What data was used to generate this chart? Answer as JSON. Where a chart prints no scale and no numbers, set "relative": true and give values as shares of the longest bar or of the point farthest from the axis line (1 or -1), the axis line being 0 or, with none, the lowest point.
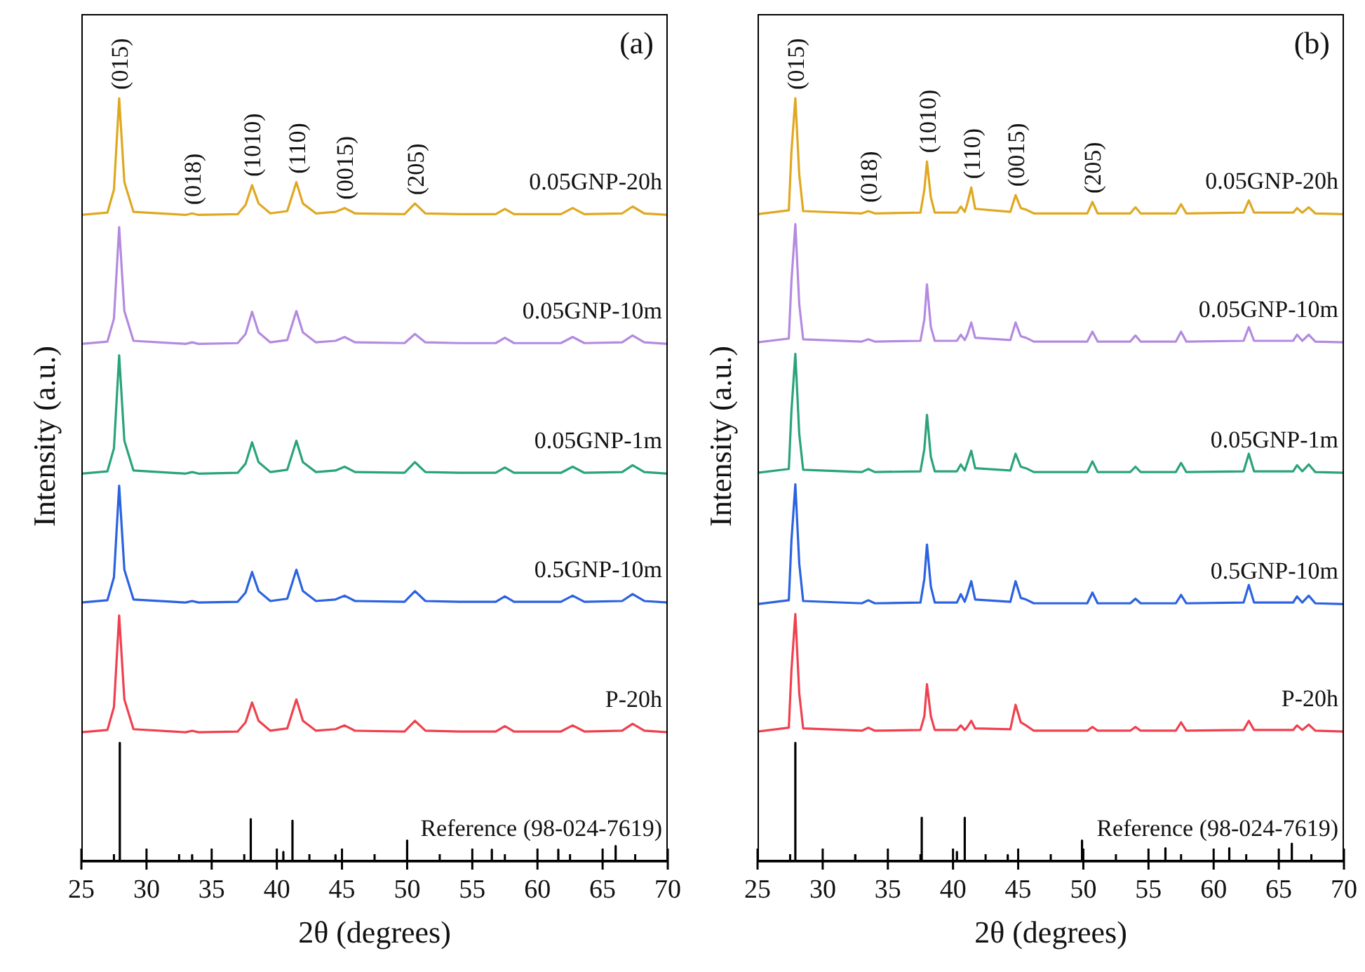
{
  "chart_data": [
    {
      "type": "line",
      "relative": true,
      "xlabel": "2θ (degrees)",
      "ylabel": "Intensity (a.u.)",
      "tick_labels": "x",
      "xlim": [
        25,
        70
      ],
      "xticks": [
        25,
        {
          "value": 27.5,
          "label": null
        },
        30,
        {
          "value": 32.5,
          "label": null
        },
        35,
        {
          "value": 37.5,
          "label": null
        },
        40,
        {
          "value": 42.5,
          "label": null
        },
        45,
        {
          "value": 47.5,
          "label": null
        },
        50,
        {
          "value": 52.5,
          "label": null
        },
        55,
        {
          "value": 57.5,
          "label": null
        },
        60,
        {
          "value": 62.5,
          "label": null
        },
        65,
        {
          "value": 67.5,
          "label": null
        },
        70
      ],
      "x": [
        25,
        27,
        27.5,
        27.9,
        28.3,
        29,
        33,
        33.5,
        34,
        37,
        37.6,
        38.1,
        38.6,
        39.5,
        40.8,
        41.5,
        42,
        43,
        44.5,
        45.2,
        46,
        49.8,
        50.6,
        51.4,
        54,
        56.8,
        57.5,
        58.2,
        61.8,
        62.7,
        63.6,
        66.5,
        67.3,
        68.2,
        70
      ],
      "series": [
        {
          "name": "0.05GNP-20h",
          "color": "#e0a820",
          "values": [
            0.847,
            0.85,
            0.88,
            1.0,
            0.89,
            0.851,
            0.847,
            0.849,
            0.847,
            0.848,
            0.86,
            0.886,
            0.862,
            0.849,
            0.852,
            0.89,
            0.862,
            0.849,
            0.851,
            0.856,
            0.849,
            0.848,
            0.862,
            0.849,
            0.848,
            0.848,
            0.855,
            0.848,
            0.848,
            0.856,
            0.848,
            0.849,
            0.858,
            0.849,
            0.847
          ]
        },
        {
          "name": "0.05GNP-10m",
          "color": "#b48ae0",
          "values": [
            0.678,
            0.681,
            0.711,
            0.831,
            0.721,
            0.682,
            0.678,
            0.68,
            0.678,
            0.679,
            0.691,
            0.72,
            0.693,
            0.68,
            0.683,
            0.721,
            0.693,
            0.68,
            0.682,
            0.687,
            0.68,
            0.679,
            0.691,
            0.68,
            0.679,
            0.679,
            0.686,
            0.679,
            0.679,
            0.687,
            0.679,
            0.68,
            0.689,
            0.68,
            0.678
          ]
        },
        {
          "name": "0.05GNP-1m",
          "color": "#2aa37a",
          "values": [
            0.508,
            0.511,
            0.541,
            0.663,
            0.551,
            0.512,
            0.508,
            0.51,
            0.508,
            0.509,
            0.521,
            0.549,
            0.523,
            0.51,
            0.513,
            0.551,
            0.523,
            0.51,
            0.512,
            0.517,
            0.51,
            0.509,
            0.523,
            0.51,
            0.509,
            0.509,
            0.516,
            0.509,
            0.509,
            0.517,
            0.509,
            0.51,
            0.519,
            0.51,
            0.508
          ]
        },
        {
          "name": "0.5GNP-10m",
          "color": "#2a62e0",
          "values": [
            0.339,
            0.342,
            0.372,
            0.492,
            0.382,
            0.343,
            0.339,
            0.341,
            0.339,
            0.34,
            0.352,
            0.379,
            0.354,
            0.341,
            0.344,
            0.382,
            0.354,
            0.341,
            0.343,
            0.348,
            0.341,
            0.34,
            0.354,
            0.341,
            0.34,
            0.34,
            0.347,
            0.34,
            0.34,
            0.348,
            0.34,
            0.341,
            0.35,
            0.341,
            0.339
          ]
        },
        {
          "name": "P-20h",
          "color": "#f0404f",
          "values": [
            0.169,
            0.172,
            0.202,
            0.322,
            0.212,
            0.173,
            0.169,
            0.171,
            0.169,
            0.17,
            0.182,
            0.208,
            0.184,
            0.171,
            0.174,
            0.212,
            0.184,
            0.171,
            0.173,
            0.178,
            0.171,
            0.17,
            0.184,
            0.171,
            0.17,
            0.17,
            0.177,
            0.17,
            0.17,
            0.178,
            0.17,
            0.171,
            0.18,
            0.171,
            0.169
          ]
        },
        {
          "name": "Reference (98-024-7619)",
          "color": "#000000",
          "x": [
            25,
            27.95,
            27.95,
            27.95,
            33.5,
            33.5,
            33.5,
            38,
            38,
            38,
            40.5,
            40.5,
            40.5,
            41.2,
            41.2,
            41.2,
            44.5,
            44.5,
            44.5,
            50,
            50,
            50,
            56.5,
            56.5,
            56.5,
            61.6,
            61.6,
            61.6,
            66,
            66,
            66,
            70
          ],
          "values": [
            0,
            0,
            0.155,
            0,
            0,
            0.008,
            0,
            0,
            0.055,
            0,
            0,
            0.012,
            0,
            0,
            0.053,
            0,
            0,
            0.008,
            0,
            0,
            0.027,
            0,
            0,
            0.015,
            0,
            0,
            0.015,
            0,
            0,
            0.02,
            0,
            0
          ]
        }
      ],
      "annotations": [
        "(a)",
        {
          "text": "(015)",
          "x": 27.9,
          "y": 1.0
        },
        {
          "text": "(018)",
          "x": 33.5,
          "y": 0.849
        },
        {
          "text": "(1010)",
          "x": 38.1,
          "y": 0.886
        },
        {
          "text": "(110)",
          "x": 41.5,
          "y": 0.89
        },
        {
          "text": "(0015)",
          "x": 45.2,
          "y": 0.856
        },
        {
          "text": "(205)",
          "x": 50.6,
          "y": 0.862
        }
      ]
    },
    {
      "type": "line",
      "relative": true,
      "xlabel": "2θ (degrees)",
      "ylabel": "Intensity (a.u.)",
      "tick_labels": "x",
      "xlim": [
        25,
        70
      ],
      "xticks": [
        25,
        {
          "value": 27.5,
          "label": null
        },
        30,
        {
          "value": 32.5,
          "label": null
        },
        35,
        {
          "value": 37.5,
          "label": null
        },
        40,
        {
          "value": 42.5,
          "label": null
        },
        45,
        {
          "value": 47.5,
          "label": null
        },
        50,
        {
          "value": 52.5,
          "label": null
        },
        55,
        {
          "value": 57.5,
          "label": null
        },
        60,
        {
          "value": 62.5,
          "label": null
        },
        65,
        {
          "value": 67.5,
          "label": null
        },
        70
      ],
      "x": [
        25,
        27.4,
        27.6,
        27.9,
        28.2,
        28.5,
        33,
        33.5,
        34,
        37.5,
        37.8,
        38.0,
        38.3,
        38.6,
        40.3,
        40.6,
        40.9,
        41.1,
        41.4,
        41.7,
        44.4,
        44.8,
        45.2,
        45.6,
        46.2,
        50.3,
        50.7,
        51.1,
        53.6,
        54.0,
        54.4,
        57.1,
        57.5,
        57.9,
        62.3,
        62.7,
        63.1,
        66.1,
        66.4,
        66.8,
        67.3,
        67.8,
        70
      ],
      "series": [
        {
          "name": "0.05GNP-20h",
          "color": "#e0a820",
          "values": [
            0.848,
            0.853,
            0.93,
            1.0,
            0.9,
            0.852,
            0.849,
            0.852,
            0.849,
            0.85,
            0.88,
            0.917,
            0.87,
            0.85,
            0.85,
            0.858,
            0.851,
            0.862,
            0.883,
            0.855,
            0.851,
            0.873,
            0.856,
            0.854,
            0.849,
            0.849,
            0.864,
            0.849,
            0.849,
            0.857,
            0.849,
            0.849,
            0.861,
            0.849,
            0.85,
            0.866,
            0.85,
            0.85,
            0.856,
            0.85,
            0.857,
            0.849,
            0.848
          ]
        },
        {
          "name": "0.05GNP-10m",
          "color": "#b48ae0",
          "values": [
            0.68,
            0.685,
            0.76,
            0.835,
            0.73,
            0.684,
            0.681,
            0.684,
            0.681,
            0.682,
            0.71,
            0.756,
            0.7,
            0.682,
            0.682,
            0.69,
            0.683,
            0.69,
            0.706,
            0.686,
            0.683,
            0.706,
            0.688,
            0.686,
            0.681,
            0.681,
            0.694,
            0.681,
            0.681,
            0.689,
            0.681,
            0.681,
            0.694,
            0.681,
            0.682,
            0.7,
            0.682,
            0.682,
            0.69,
            0.682,
            0.69,
            0.681,
            0.68
          ]
        },
        {
          "name": "0.05GNP-1m",
          "color": "#2aa37a",
          "values": [
            0.509,
            0.514,
            0.59,
            0.665,
            0.56,
            0.513,
            0.51,
            0.514,
            0.51,
            0.511,
            0.54,
            0.585,
            0.53,
            0.511,
            0.511,
            0.52,
            0.512,
            0.522,
            0.538,
            0.515,
            0.512,
            0.534,
            0.517,
            0.515,
            0.51,
            0.51,
            0.524,
            0.51,
            0.51,
            0.517,
            0.51,
            0.51,
            0.522,
            0.51,
            0.511,
            0.534,
            0.511,
            0.511,
            0.519,
            0.511,
            0.52,
            0.51,
            0.509
          ]
        },
        {
          "name": "0.5GNP-10m",
          "color": "#2a62e0",
          "values": [
            0.337,
            0.342,
            0.42,
            0.494,
            0.39,
            0.341,
            0.338,
            0.342,
            0.338,
            0.339,
            0.37,
            0.415,
            0.36,
            0.339,
            0.339,
            0.35,
            0.34,
            0.35,
            0.367,
            0.343,
            0.34,
            0.367,
            0.345,
            0.343,
            0.338,
            0.338,
            0.352,
            0.338,
            0.338,
            0.344,
            0.338,
            0.338,
            0.349,
            0.338,
            0.339,
            0.362,
            0.339,
            0.339,
            0.347,
            0.339,
            0.348,
            0.338,
            0.337
          ]
        },
        {
          "name": "P-20h",
          "color": "#f0404f",
          "values": [
            0.17,
            0.175,
            0.25,
            0.324,
            0.22,
            0.174,
            0.171,
            0.175,
            0.171,
            0.172,
            0.19,
            0.232,
            0.19,
            0.172,
            0.172,
            0.178,
            0.172,
            0.176,
            0.184,
            0.174,
            0.173,
            0.205,
            0.182,
            0.178,
            0.171,
            0.171,
            0.176,
            0.171,
            0.171,
            0.176,
            0.171,
            0.171,
            0.182,
            0.171,
            0.172,
            0.184,
            0.172,
            0.172,
            0.178,
            0.172,
            0.179,
            0.171,
            0.17
          ]
        },
        {
          "name": "Reference (98-024-7619)",
          "color": "#000000",
          "x": [
            25,
            27.9,
            27.9,
            27.9,
            32.5,
            32.5,
            32.5,
            37.6,
            37.6,
            37.6,
            40.3,
            40.3,
            40.3,
            40.9,
            40.9,
            40.9,
            44.2,
            44.2,
            44.2,
            49.9,
            49.9,
            49.9,
            56.3,
            56.3,
            56.3,
            61.2,
            61.2,
            61.2,
            66,
            66,
            66,
            70
          ],
          "values": [
            0,
            0,
            0.155,
            0,
            0,
            0.008,
            0,
            0,
            0.057,
            0,
            0,
            0.012,
            0,
            0,
            0.057,
            0,
            0,
            0.008,
            0,
            0,
            0.027,
            0,
            0,
            0.017,
            0,
            0,
            0.017,
            0,
            0,
            0.023,
            0,
            0
          ]
        }
      ],
      "annotations": [
        "(b)",
        {
          "text": "(015)",
          "x": 27.9,
          "y": 1.0
        },
        {
          "text": "(018)",
          "x": 33.5,
          "y": 0.852
        },
        {
          "text": "(1010)",
          "x": 38.0,
          "y": 0.917
        },
        {
          "text": "(110)",
          "x": 41.4,
          "y": 0.883
        },
        {
          "text": "(0015)",
          "x": 44.8,
          "y": 0.873
        },
        {
          "text": "(205)",
          "x": 50.7,
          "y": 0.864
        }
      ]
    }
  ]
}
